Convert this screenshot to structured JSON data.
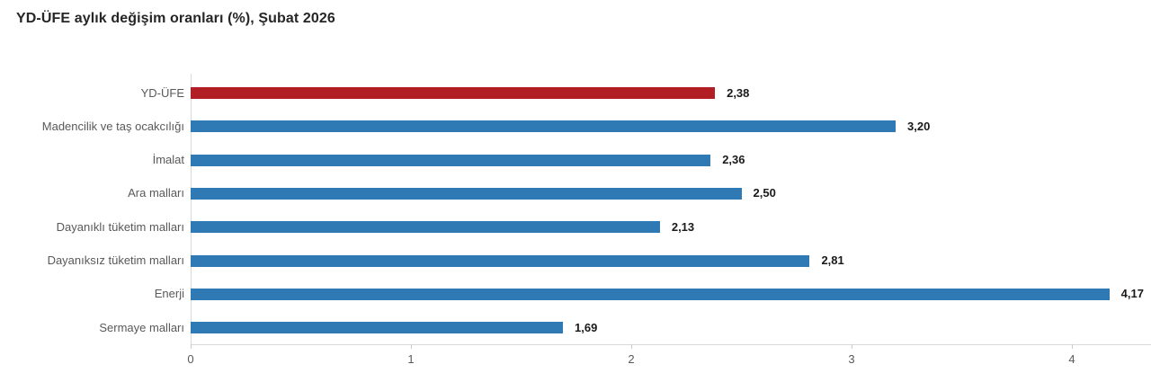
{
  "page": {
    "background_color": "#ffffff"
  },
  "chart_data": {
    "type": "bar",
    "orientation": "horizontal",
    "title": "YD-ÜFE aylık değişim oranları (%), Şubat 2026",
    "categories": [
      "YD-ÜFE",
      "Madencilik ve taş ocakcılığı",
      "İmalat",
      "Ara malları",
      "Dayanıklı tüketim malları",
      "Dayanıksız tüketim malları",
      "Enerji",
      "Sermaye malları"
    ],
    "values": [
      2.38,
      3.2,
      2.36,
      2.5,
      2.13,
      2.81,
      4.17,
      1.69
    ],
    "value_labels": [
      "2,38",
      "3,20",
      "2,36",
      "2,50",
      "2,13",
      "2,81",
      "4,17",
      "1,69"
    ],
    "bar_colors": [
      "#b11f24",
      "#2f79b5",
      "#2f79b5",
      "#2f79b5",
      "#2f79b5",
      "#2f79b5",
      "#2f79b5",
      "#2f79b5"
    ],
    "highlight_color": "#b11f24",
    "default_bar_color": "#2f79b5",
    "x_ticks": [
      "0",
      "1",
      "2",
      "3",
      "4"
    ],
    "x_tick_values": [
      0,
      1,
      2,
      3,
      4
    ],
    "xlim": [
      0,
      4.36
    ],
    "xlabel": "",
    "ylabel": "",
    "grid": false,
    "legend": "none",
    "axis_color": "#d9d9d9",
    "category_label_color": "#595959",
    "value_label_color": "#1a1a1a",
    "title_color": "#262626"
  }
}
